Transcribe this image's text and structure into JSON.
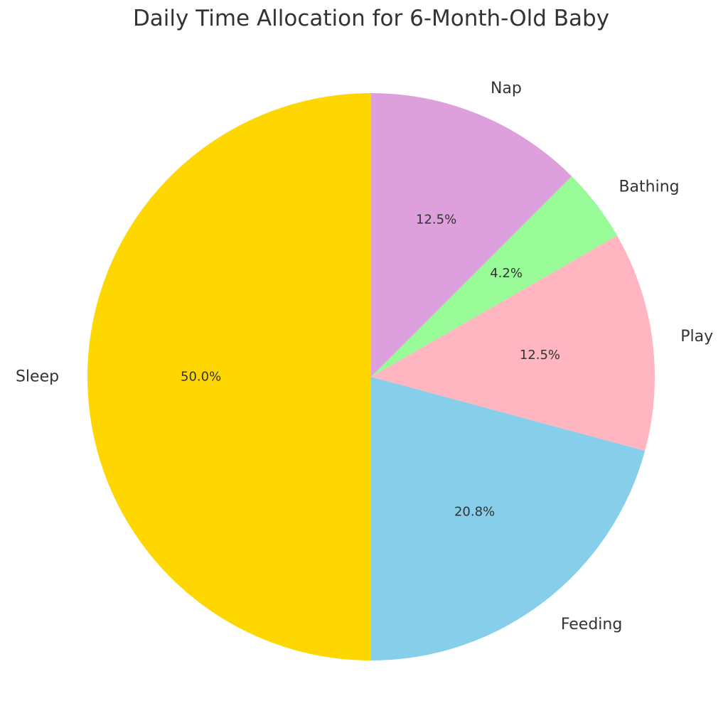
{
  "chart_data": {
    "type": "pie",
    "title": "Daily Time Allocation for 6-Month-Old Baby",
    "start_angle_deg": 90,
    "direction": "counterclockwise",
    "slices": [
      {
        "label": "Sleep",
        "value": 50.0,
        "pct_label": "50.0%",
        "color": "#FFD700"
      },
      {
        "label": "Feeding",
        "value": 20.8,
        "pct_label": "20.8%",
        "color": "#87CEEB"
      },
      {
        "label": "Play",
        "value": 12.5,
        "pct_label": "12.5%",
        "color": "#FFB6C1"
      },
      {
        "label": "Bathing",
        "value": 4.2,
        "pct_label": "4.2%",
        "color": "#98FB98"
      },
      {
        "label": "Nap",
        "value": 12.5,
        "pct_label": "12.5%",
        "color": "#DDA0DD"
      }
    ]
  }
}
